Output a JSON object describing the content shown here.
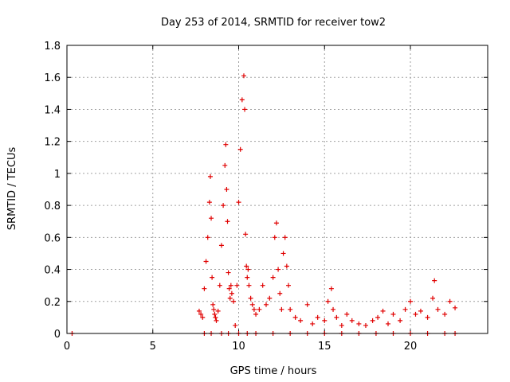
{
  "chart_data": {
    "type": "scatter",
    "title": "Day 253 of 2014, SRMTID for receiver tow2",
    "xlabel": "GPS time / hours",
    "ylabel": "SRMTID / TECUs",
    "xlim": [
      0,
      24.5
    ],
    "ylim": [
      0,
      1.8
    ],
    "xticks": [
      "0",
      "5",
      "10",
      "15",
      "20"
    ],
    "yticks": [
      "0",
      "0.2",
      "0.4",
      "0.6",
      "0.8",
      "1",
      "1.2",
      "1.4",
      "1.6",
      "1.8"
    ],
    "grid": true,
    "marker": "+",
    "color": "#e00000",
    "x": [
      0.3,
      7.7,
      7.8,
      7.9,
      8.0,
      8.1,
      8.2,
      8.3,
      8.35,
      8.4,
      8.45,
      8.5,
      8.55,
      8.6,
      8.65,
      8.7,
      8.8,
      8.9,
      9.0,
      9.1,
      9.2,
      9.25,
      9.3,
      9.35,
      9.4,
      9.45,
      9.5,
      9.55,
      9.6,
      9.7,
      9.8,
      9.9,
      10.0,
      10.1,
      10.2,
      10.3,
      10.35,
      10.4,
      10.45,
      10.5,
      10.55,
      10.6,
      10.7,
      10.8,
      10.9,
      11.0,
      11.2,
      11.4,
      11.6,
      11.8,
      12.0,
      12.1,
      12.2,
      12.3,
      12.4,
      12.5,
      12.6,
      12.7,
      12.8,
      12.9,
      13.0,
      13.3,
      13.6,
      14.0,
      14.3,
      14.6,
      15.0,
      15.2,
      15.4,
      15.5,
      15.7,
      16.0,
      16.3,
      16.6,
      17.0,
      17.4,
      17.8,
      18.1,
      18.4,
      18.7,
      19.0,
      19.4,
      19.7,
      20.0,
      20.3,
      20.6,
      21.0,
      21.3,
      21.4,
      21.6,
      22.0,
      22.3,
      22.6,
      8.0,
      8.4,
      9.0,
      9.4,
      10.0,
      10.5,
      11.0,
      12.0,
      13.0,
      14.0,
      15.0,
      16.0,
      17.0,
      18.0,
      19.0,
      20.0,
      21.0,
      22.0,
      22.6
    ],
    "y": [
      0,
      0.14,
      0.12,
      0.1,
      0.28,
      0.45,
      0.6,
      0.82,
      0.98,
      0.72,
      0.35,
      0.18,
      0.15,
      0.12,
      0.1,
      0.08,
      0.14,
      0.3,
      0.55,
      0.8,
      1.05,
      1.18,
      0.9,
      0.7,
      0.38,
      0.28,
      0.22,
      0.3,
      0.25,
      0.2,
      0.05,
      0.3,
      0.82,
      1.15,
      1.46,
      1.61,
      1.4,
      0.62,
      0.42,
      0.35,
      0.4,
      0.3,
      0.22,
      0.18,
      0.15,
      0.12,
      0.15,
      0.3,
      0.18,
      0.22,
      0.35,
      0.6,
      0.69,
      0.4,
      0.25,
      0.15,
      0.5,
      0.6,
      0.42,
      0.3,
      0.15,
      0.1,
      0.08,
      0.18,
      0.06,
      0.1,
      0.08,
      0.2,
      0.28,
      0.15,
      0.1,
      0.05,
      0.12,
      0.08,
      0.06,
      0.05,
      0.08,
      0.1,
      0.14,
      0.06,
      0.12,
      0.08,
      0.15,
      0.2,
      0.12,
      0.14,
      0.1,
      0.22,
      0.33,
      0.15,
      0.12,
      0.2,
      0.16,
      0,
      0,
      0,
      0,
      0,
      0,
      0,
      0,
      0,
      0,
      0,
      0,
      0,
      0,
      0,
      0,
      0,
      0,
      0
    ]
  }
}
